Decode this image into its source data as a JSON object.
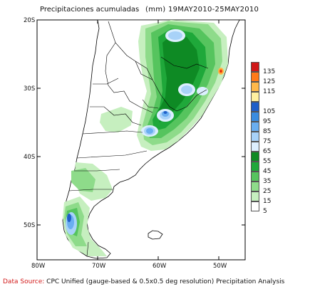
{
  "title": {
    "left": "Precipitaciones acumuladas",
    "right": "(mm) 19MAY2010-25MAY2010"
  },
  "axes": {
    "lat_labels": [
      "20S",
      "30S",
      "40S",
      "50S"
    ],
    "lon_labels": [
      "80W",
      "70W",
      "60W",
      "50W"
    ]
  },
  "legend": {
    "items": [
      {
        "label": "135",
        "color": "#d01818"
      },
      {
        "label": "125",
        "color": "#ff7a1a"
      },
      {
        "label": "115",
        "color": "#ffb84a"
      },
      {
        "label": "",
        "color": "#fff0a0"
      },
      {
        "label": "105",
        "color": "#1f5fc8"
      },
      {
        "label": "95",
        "color": "#3a8ce0"
      },
      {
        "label": "85",
        "color": "#6aaef0"
      },
      {
        "label": "75",
        "color": "#a8d2f8"
      },
      {
        "label": "65",
        "color": "#dcefff"
      },
      {
        "label": "55",
        "color": "#0e8a24"
      },
      {
        "label": "45",
        "color": "#1fa83a"
      },
      {
        "label": "35",
        "color": "#56c45e"
      },
      {
        "label": "25",
        "color": "#8edb8a"
      },
      {
        "label": "15",
        "color": "#c6efbf"
      },
      {
        "label": "5",
        "color": "#ffffff"
      }
    ]
  },
  "footer": {
    "source_label": "Data Source:",
    "source_text": "CPC Unified (gauge-based & 0.5x0.5 deg resolution) Precipitation Analysis"
  }
}
